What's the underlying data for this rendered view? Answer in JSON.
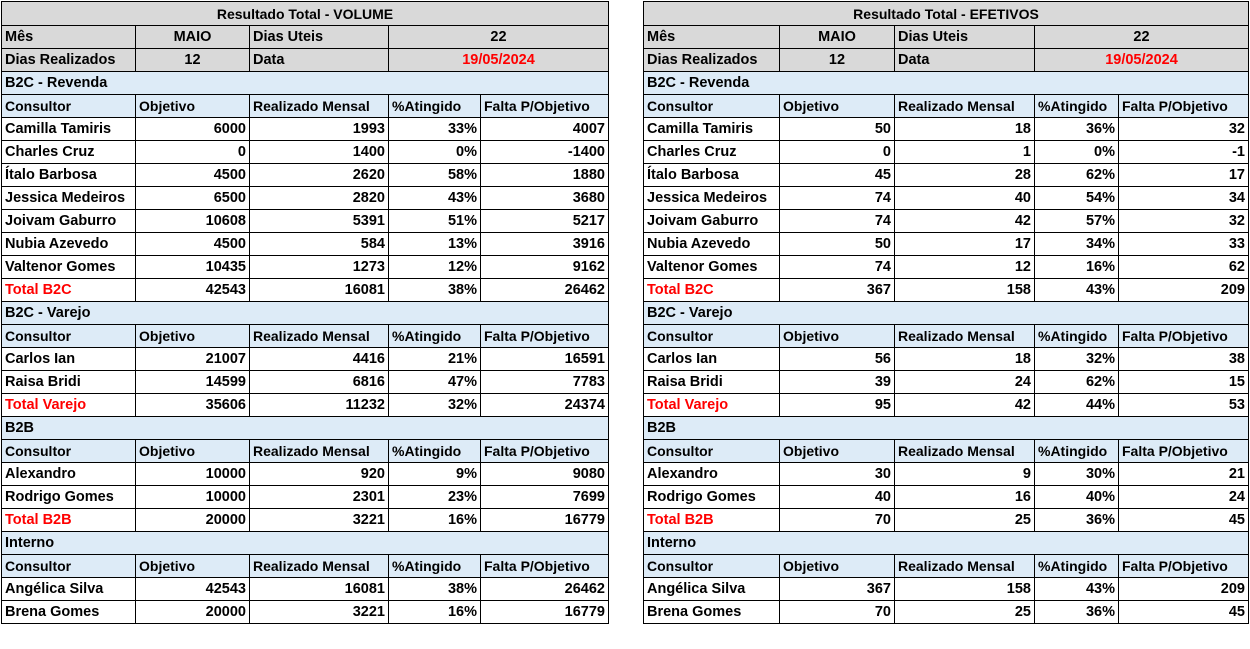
{
  "panels": [
    {
      "title": "Resultado Total - VOLUME",
      "mes_label": "Mês",
      "mes_value": "MAIO",
      "dias_uteis_label": "Dias Uteis",
      "dias_uteis_value": "22",
      "dias_realizados_label": "Dias Realizados",
      "dias_realizados_value": "12",
      "data_label": "Data",
      "data_value": "19/05/2024",
      "columns": [
        "Consultor",
        "Objetivo",
        "Realizado Mensal",
        "%Atingido",
        "Falta P/Objetivo"
      ],
      "sections": [
        {
          "name": "B2C - Revenda",
          "rows": [
            [
              "Camilla Tamiris",
              "6000",
              "1993",
              "33%",
              "4007"
            ],
            [
              "Charles Cruz",
              "0",
              "1400",
              "0%",
              "-1400"
            ],
            [
              "Ítalo Barbosa",
              "4500",
              "2620",
              "58%",
              "1880"
            ],
            [
              "Jessica Medeiros",
              "6500",
              "2820",
              "43%",
              "3680"
            ],
            [
              "Joivam Gaburro",
              "10608",
              "5391",
              "51%",
              "5217"
            ],
            [
              "Nubia Azevedo",
              "4500",
              "584",
              "13%",
              "3916"
            ],
            [
              "Valtenor Gomes",
              "10435",
              "1273",
              "12%",
              "9162"
            ]
          ],
          "total": [
            "Total B2C",
            "42543",
            "16081",
            "38%",
            "26462"
          ]
        },
        {
          "name": "B2C - Varejo",
          "rows": [
            [
              "Carlos Ian",
              "21007",
              "4416",
              "21%",
              "16591"
            ],
            [
              "Raisa Bridi",
              "14599",
              "6816",
              "47%",
              "7783"
            ]
          ],
          "total": [
            "Total Varejo",
            "35606",
            "11232",
            "32%",
            "24374"
          ]
        },
        {
          "name": "B2B",
          "rows": [
            [
              "Alexandro",
              "10000",
              "920",
              "9%",
              "9080"
            ],
            [
              "Rodrigo Gomes",
              "10000",
              "2301",
              "23%",
              "7699"
            ]
          ],
          "total": [
            "Total B2B",
            "20000",
            "3221",
            "16%",
            "16779"
          ]
        },
        {
          "name": "Interno",
          "rows": [
            [
              "Angélica Silva",
              "42543",
              "16081",
              "38%",
              "26462"
            ],
            [
              "Brena Gomes",
              "20000",
              "3221",
              "16%",
              "16779"
            ]
          ],
          "total": null
        }
      ]
    },
    {
      "title": "Resultado Total - EFETIVOS",
      "mes_label": "Mês",
      "mes_value": "MAIO",
      "dias_uteis_label": "Dias Uteis",
      "dias_uteis_value": "22",
      "dias_realizados_label": "Dias Realizados",
      "dias_realizados_value": "12",
      "data_label": "Data",
      "data_value": "19/05/2024",
      "columns": [
        "Consultor",
        "Objetivo",
        "Realizado Mensal",
        "%Atingido",
        "Falta P/Objetivo"
      ],
      "sections": [
        {
          "name": "B2C - Revenda",
          "rows": [
            [
              "Camilla Tamiris",
              "50",
              "18",
              "36%",
              "32"
            ],
            [
              "Charles Cruz",
              "0",
              "1",
              "0%",
              "-1"
            ],
            [
              "Ítalo Barbosa",
              "45",
              "28",
              "62%",
              "17"
            ],
            [
              "Jessica Medeiros",
              "74",
              "40",
              "54%",
              "34"
            ],
            [
              "Joivam Gaburro",
              "74",
              "42",
              "57%",
              "32"
            ],
            [
              "Nubia Azevedo",
              "50",
              "17",
              "34%",
              "33"
            ],
            [
              "Valtenor Gomes",
              "74",
              "12",
              "16%",
              "62"
            ]
          ],
          "total": [
            "Total B2C",
            "367",
            "158",
            "43%",
            "209"
          ]
        },
        {
          "name": "B2C - Varejo",
          "rows": [
            [
              "Carlos Ian",
              "56",
              "18",
              "32%",
              "38"
            ],
            [
              "Raisa Bridi",
              "39",
              "24",
              "62%",
              "15"
            ]
          ],
          "total": [
            "Total Varejo",
            "95",
            "42",
            "44%",
            "53"
          ]
        },
        {
          "name": "B2B",
          "rows": [
            [
              "Alexandro",
              "30",
              "9",
              "30%",
              "21"
            ],
            [
              "Rodrigo Gomes",
              "40",
              "16",
              "40%",
              "24"
            ]
          ],
          "total": [
            "Total B2B",
            "70",
            "25",
            "36%",
            "45"
          ]
        },
        {
          "name": "Interno",
          "rows": [
            [
              "Angélica Silva",
              "367",
              "158",
              "43%",
              "209"
            ],
            [
              "Brena Gomes",
              "70",
              "25",
              "36%",
              "45"
            ]
          ],
          "total": null
        }
      ]
    }
  ]
}
